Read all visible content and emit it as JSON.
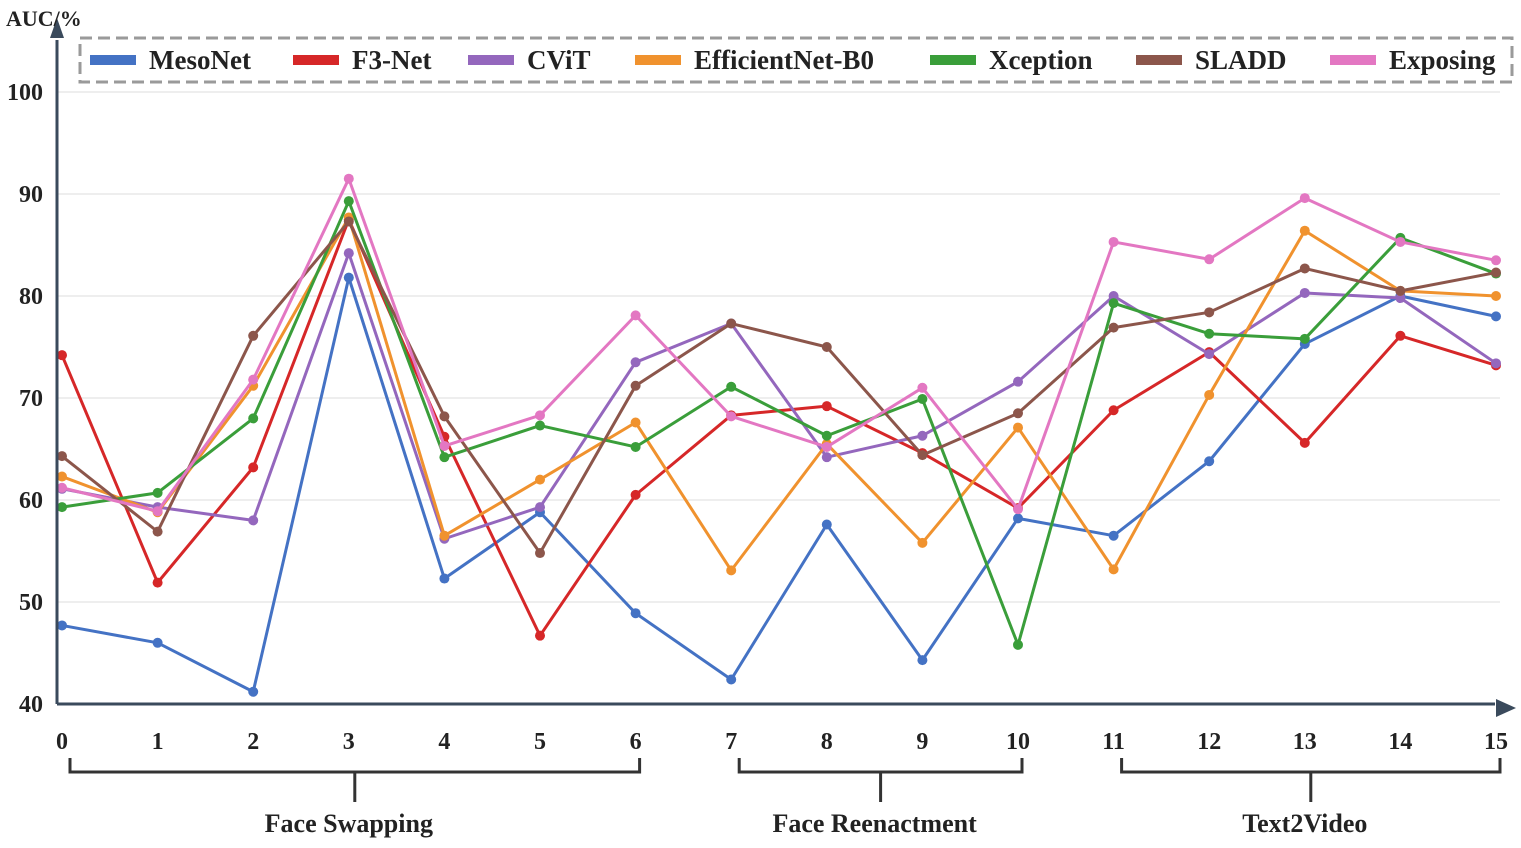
{
  "chart_data": {
    "type": "line",
    "title": "",
    "ylabel": "AUC/%",
    "xlabel": "",
    "ylim": [
      40,
      100
    ],
    "yticks": [
      40,
      50,
      60,
      70,
      80,
      90,
      100
    ],
    "x": [
      0,
      1,
      2,
      3,
      4,
      5,
      6,
      7,
      8,
      9,
      10,
      11,
      12,
      13,
      14,
      15
    ],
    "xtick_labels": [
      "0",
      "1",
      "2",
      "3",
      "4",
      "5",
      "6",
      "7",
      "8",
      "9",
      "10",
      "11",
      "12",
      "13",
      "14",
      "15"
    ],
    "grid": "horizontal",
    "legend_position": "top",
    "series": [
      {
        "name": "MesoNet",
        "color": "#4472C4",
        "values": [
          47.7,
          46.0,
          41.2,
          81.8,
          52.3,
          58.8,
          48.9,
          42.4,
          57.6,
          44.3,
          58.2,
          56.5,
          63.8,
          75.3,
          80.0,
          78.0
        ]
      },
      {
        "name": "F3-Net",
        "color": "#D62728",
        "values": [
          74.2,
          51.9,
          63.2,
          87.5,
          66.2,
          46.7,
          60.5,
          68.3,
          69.2,
          64.6,
          59.2,
          68.8,
          74.5,
          65.6,
          76.1,
          73.2
        ]
      },
      {
        "name": "CViT",
        "color": "#9467BD",
        "values": [
          61.1,
          59.3,
          58.0,
          84.2,
          56.2,
          59.3,
          73.5,
          77.3,
          64.2,
          66.3,
          71.6,
          80.0,
          74.3,
          80.3,
          79.8,
          73.4
        ]
      },
      {
        "name": "EfficientNet-B0",
        "color": "#F0922E",
        "values": [
          62.3,
          58.8,
          71.2,
          87.7,
          56.5,
          62.0,
          67.6,
          53.1,
          65.5,
          55.8,
          67.1,
          53.2,
          70.3,
          86.4,
          80.5,
          80.0
        ]
      },
      {
        "name": "Xception",
        "color": "#3A9E3A",
        "values": [
          59.3,
          60.7,
          68.0,
          89.3,
          64.2,
          67.3,
          65.2,
          71.1,
          66.3,
          69.9,
          45.8,
          79.3,
          76.3,
          75.8,
          85.7,
          82.2
        ]
      },
      {
        "name": "SLADD",
        "color": "#8C564B",
        "values": [
          64.3,
          56.9,
          76.1,
          87.3,
          68.2,
          54.8,
          71.2,
          77.3,
          75.0,
          64.4,
          68.5,
          76.9,
          78.4,
          82.7,
          80.5,
          82.3
        ]
      },
      {
        "name": "Exposing",
        "color": "#E377C2",
        "values": [
          61.2,
          58.9,
          71.8,
          91.5,
          65.3,
          68.3,
          78.1,
          68.2,
          65.2,
          71.0,
          59.1,
          85.3,
          83.6,
          89.6,
          85.3,
          83.5
        ]
      }
    ],
    "groups": [
      {
        "label": "Face Swapping",
        "from": 0,
        "to": 6
      },
      {
        "label": "Face Reenactment",
        "from": 7,
        "to": 10
      },
      {
        "label": "Text2Video",
        "from": 11,
        "to": 15
      }
    ]
  }
}
